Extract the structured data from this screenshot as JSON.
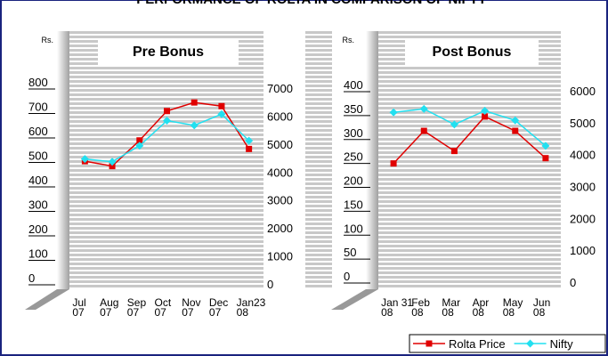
{
  "title": "PERFORMANCE OF ROLTA IN COMPARISON OF NIFTY",
  "chart_data": [
    {
      "type": "line",
      "subtitle": "Pre Bonus",
      "ylabel": "Rs.",
      "categories": [
        "Jul\n07",
        "Aug\n07",
        "Sep\n07",
        "Oct\n07",
        "Nov\n07",
        "Dec\n07",
        "Jan23\n08"
      ],
      "ylim": [
        0,
        800
      ],
      "yticks": [
        0,
        100,
        200,
        300,
        400,
        500,
        600,
        700,
        800
      ],
      "y2lim": [
        0,
        7000
      ],
      "y2ticks": [
        0,
        1000,
        2000,
        3000,
        4000,
        5000,
        6000,
        7000
      ],
      "series": [
        {
          "name": "Rolta Price",
          "color": "#e00000",
          "marker": "square",
          "values": [
            505,
            485,
            590,
            710,
            745,
            730,
            555
          ]
        },
        {
          "name": "Nifty",
          "color": "#22e0f0",
          "marker": "diamond",
          "axis": "y2",
          "values": [
            4500,
            4400,
            4970,
            5870,
            5700,
            6100,
            5150
          ]
        }
      ]
    },
    {
      "type": "line",
      "subtitle": "Post Bonus",
      "ylabel": "Rs.",
      "categories": [
        "Jan 31\n08",
        "Feb\n08",
        "Mar\n08",
        "Apr\n08",
        "May\n08",
        "Jun\n08"
      ],
      "ylim": [
        0,
        400
      ],
      "yticks": [
        0,
        50,
        100,
        150,
        200,
        250,
        300,
        350,
        400
      ],
      "y2lim": [
        0,
        6000
      ],
      "y2ticks": [
        0,
        1000,
        2000,
        3000,
        4000,
        5000,
        6000
      ],
      "series": [
        {
          "name": "Rolta Price",
          "color": "#e00000",
          "marker": "square",
          "values": [
            250,
            318,
            276,
            348,
            318,
            261
          ]
        },
        {
          "name": "Nifty",
          "color": "#22e0f0",
          "marker": "diamond",
          "axis": "y2",
          "values": [
            5350,
            5460,
            4970,
            5400,
            5100,
            4300
          ]
        }
      ]
    }
  ]
}
